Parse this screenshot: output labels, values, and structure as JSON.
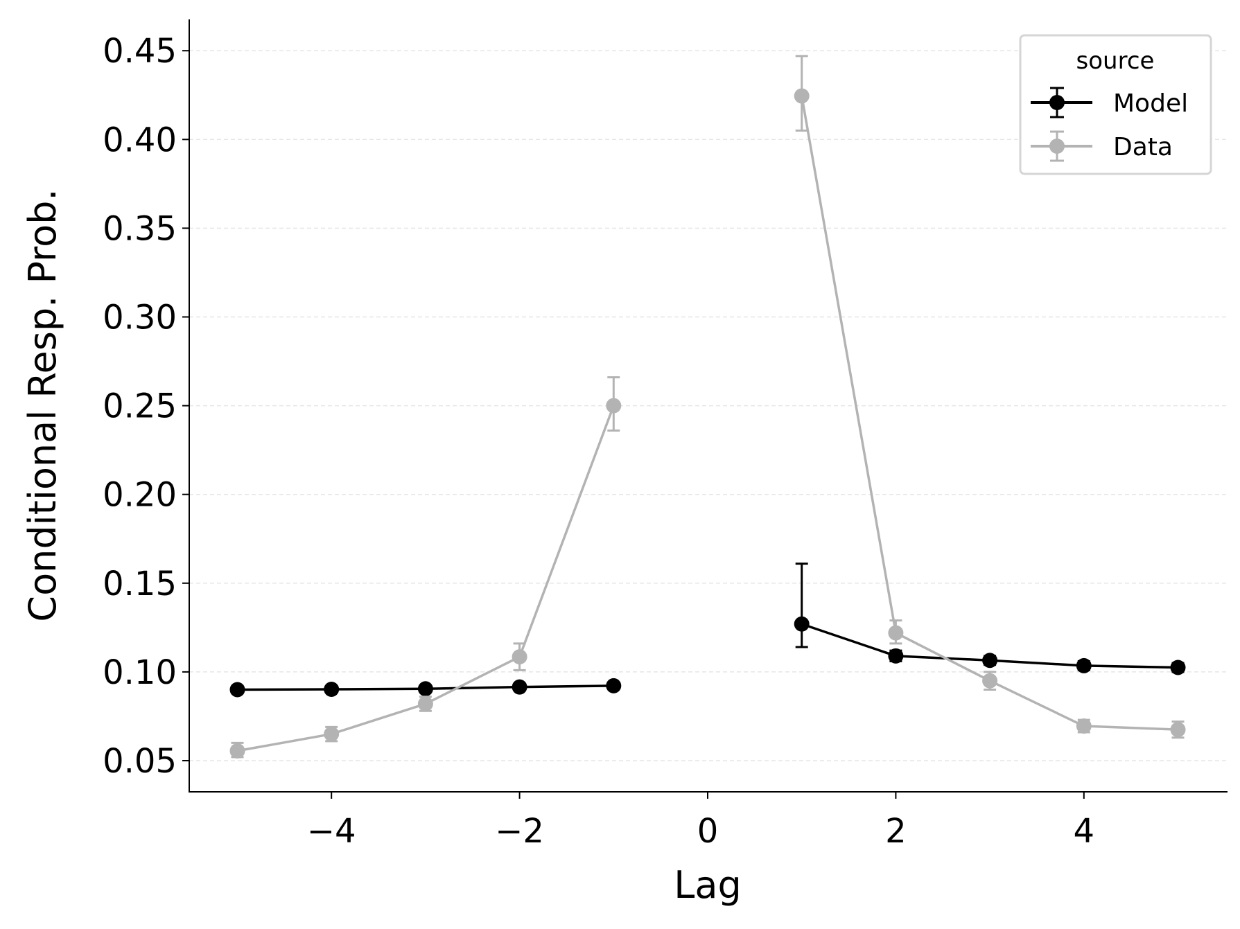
{
  "chart_data": {
    "type": "line",
    "title": "",
    "xlabel": "Lag",
    "ylabel": "Conditional Resp. Prob.",
    "xlim": [
      -5.5,
      5.5
    ],
    "ylim": [
      0.032,
      0.467
    ],
    "xticks": [
      -4,
      -2,
      0,
      2,
      4
    ],
    "xtick_labels": [
      "−4",
      "−2",
      "0",
      "2",
      "4"
    ],
    "yticks": [
      0.05,
      0.1,
      0.15,
      0.2,
      0.25,
      0.3,
      0.35,
      0.4,
      0.45
    ],
    "ytick_labels": [
      "0.05",
      "0.10",
      "0.15",
      "0.20",
      "0.25",
      "0.30",
      "0.35",
      "0.40",
      "0.45"
    ],
    "grid": "horizontal dashed",
    "legend": {
      "title": "source",
      "placement": "top-right"
    },
    "series": [
      {
        "name": "Model",
        "color": "#000000",
        "segments": [
          {
            "x": [
              -5,
              -4,
              -3,
              -2,
              -1
            ],
            "y": [
              0.09,
              0.0902,
              0.0905,
              0.0915,
              0.0922
            ],
            "err_low": [
              0.088,
              0.0885,
              0.089,
              0.09,
              0.0905
            ],
            "err_high": [
              0.092,
              0.092,
              0.092,
              0.093,
              0.094
            ]
          },
          {
            "x": [
              1,
              2,
              3,
              4,
              5
            ],
            "y": [
              0.127,
              0.109,
              0.1065,
              0.1035,
              0.1025
            ],
            "err_low": [
              0.114,
              0.106,
              0.104,
              0.101,
              0.1
            ],
            "err_high": [
              0.161,
              0.112,
              0.109,
              0.106,
              0.105
            ]
          }
        ]
      },
      {
        "name": "Data",
        "color": "#b3b3b3",
        "segments": [
          {
            "x": [
              -5,
              -4,
              -3,
              -2,
              -1
            ],
            "y": [
              0.0555,
              0.065,
              0.082,
              0.1085,
              0.25
            ],
            "err_low": [
              0.052,
              0.061,
              0.078,
              0.101,
              0.236
            ],
            "err_high": [
              0.06,
              0.069,
              0.086,
              0.116,
              0.266
            ]
          },
          {
            "x": [
              1,
              2,
              3,
              4,
              5
            ],
            "y": [
              0.4245,
              0.122,
              0.095,
              0.0695,
              0.0675
            ],
            "err_low": [
              0.405,
              0.116,
              0.09,
              0.066,
              0.063
            ],
            "err_high": [
              0.447,
              0.129,
              0.1,
              0.073,
              0.072
            ]
          }
        ]
      }
    ]
  }
}
